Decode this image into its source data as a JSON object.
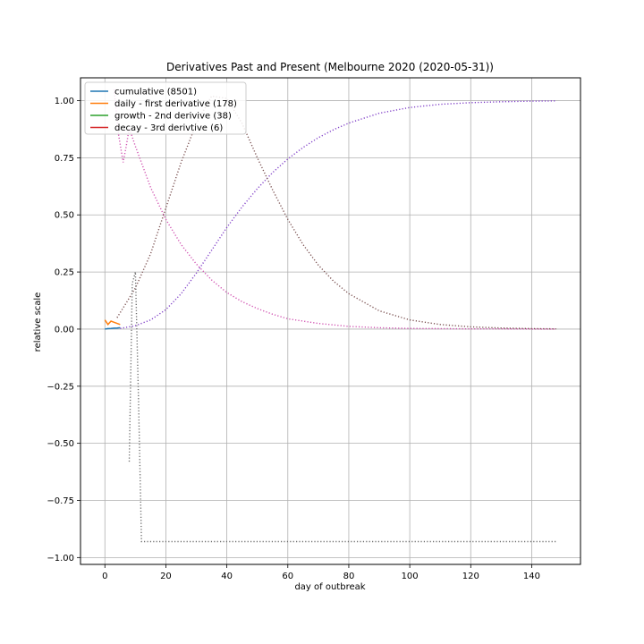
{
  "chart_data": {
    "type": "line",
    "title": "Derivatives Past and Present (Melbourne 2020 (2020-05-31))",
    "xlabel": "day of outbreak",
    "ylabel": "relative scale",
    "xlim": [
      -8,
      156
    ],
    "ylim": [
      -1.03,
      1.1
    ],
    "xticks": [
      0,
      20,
      40,
      60,
      80,
      100,
      120,
      140
    ],
    "yticks": [
      -1.0,
      -0.75,
      -0.5,
      -0.25,
      0.0,
      0.25,
      0.5,
      0.75,
      1.0
    ],
    "xtick_labels": [
      "0",
      "20",
      "40",
      "60",
      "80",
      "100",
      "120",
      "140"
    ],
    "ytick_labels": [
      "−1.00",
      "−0.75",
      "−0.50",
      "−0.25",
      "0.00",
      "0.25",
      "0.50",
      "0.75",
      "1.00"
    ],
    "grid": true,
    "legend_position": "top-left",
    "series": [
      {
        "name": "cumulative (8501)",
        "color": "#1f77b4",
        "style": "solid",
        "x": [
          0,
          1,
          2,
          3,
          4,
          5
        ],
        "y": [
          0.0,
          0.002,
          0.003,
          0.004,
          0.005,
          0.006
        ]
      },
      {
        "name": "daily - first derivative (178)",
        "color": "#ff7f0e",
        "style": "solid",
        "x": [
          0,
          1,
          2,
          3,
          4,
          5
        ],
        "y": [
          0.04,
          0.02,
          0.035,
          0.03,
          0.025,
          0.02
        ]
      },
      {
        "name": "growth - 2nd derivive (38)",
        "color": "#2ca02c",
        "style": "solid",
        "x": [],
        "y": []
      },
      {
        "name": "decay - 3rd derivtive (6)",
        "color": "#d62728",
        "style": "solid",
        "x": [],
        "y": []
      }
    ],
    "projections": [
      {
        "color": "#8040c8",
        "style": "dotted",
        "x": [
          5,
          10,
          15,
          20,
          25,
          30,
          35,
          40,
          45,
          50,
          55,
          60,
          65,
          70,
          75,
          80,
          90,
          100,
          110,
          120,
          130,
          140,
          148
        ],
        "y": [
          0.003,
          0.015,
          0.04,
          0.085,
          0.155,
          0.245,
          0.345,
          0.445,
          0.535,
          0.615,
          0.685,
          0.745,
          0.795,
          0.838,
          0.873,
          0.902,
          0.945,
          0.97,
          0.984,
          0.991,
          0.995,
          0.998,
          0.999
        ]
      },
      {
        "color": "#d050b0",
        "style": "dotted",
        "x": [
          3,
          4.5,
          6,
          7,
          8,
          10,
          15,
          20,
          25,
          30,
          35,
          40,
          45,
          50,
          55,
          60,
          70,
          80,
          90,
          100,
          110,
          120,
          130,
          140,
          148
        ],
        "y": [
          1.05,
          0.85,
          0.73,
          0.8,
          0.88,
          0.8,
          0.62,
          0.48,
          0.37,
          0.285,
          0.215,
          0.16,
          0.12,
          0.09,
          0.065,
          0.045,
          0.025,
          0.012,
          0.006,
          0.003,
          0.002,
          0.001,
          0.001,
          0.0,
          0.0
        ]
      },
      {
        "color": "#7a5050",
        "style": "dotted",
        "x": [
          4,
          10,
          15,
          20,
          25,
          30,
          35,
          40,
          45,
          50,
          55,
          60,
          65,
          70,
          75,
          80,
          90,
          100,
          110,
          120,
          130,
          140,
          148
        ],
        "y": [
          0.05,
          0.18,
          0.33,
          0.53,
          0.73,
          0.9,
          1.02,
          1.01,
          0.9,
          0.75,
          0.61,
          0.48,
          0.37,
          0.28,
          0.21,
          0.155,
          0.08,
          0.04,
          0.02,
          0.01,
          0.005,
          0.002,
          0.001
        ]
      },
      {
        "color": "#6e6e6e",
        "style": "dotted",
        "x": [
          8,
          9,
          10,
          11,
          12,
          20,
          40,
          60,
          80,
          100,
          120,
          140,
          148
        ],
        "y": [
          -0.58,
          0.2,
          0.25,
          -0.3,
          -0.93,
          -0.93,
          -0.93,
          -0.93,
          -0.93,
          -0.93,
          -0.93,
          -0.93,
          -0.93
        ]
      }
    ]
  }
}
